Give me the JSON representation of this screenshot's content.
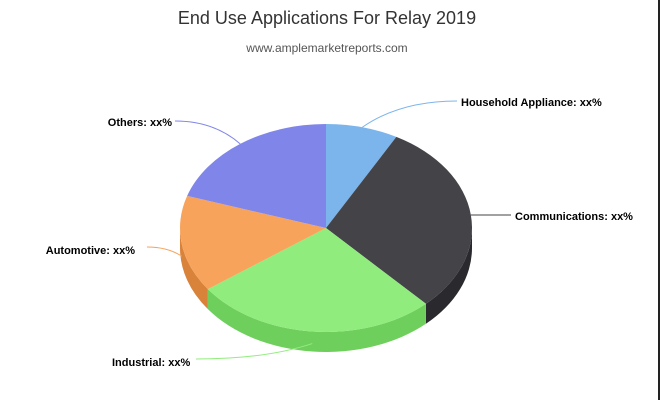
{
  "chart_data": {
    "type": "pie",
    "title": "End Use Applications For Relay 2019",
    "subtitle": "www.amplemarketreports.com",
    "three_d": true,
    "slices": [
      {
        "name": "Household Appliance",
        "label": "Household Appliance: xx%",
        "value": 8,
        "color": "#7cb5ec",
        "side_color": "#5f8fbd"
      },
      {
        "name": "Communications",
        "label": "Communications: xx%",
        "value": 30,
        "color": "#434348",
        "side_color": "#2a2a2e"
      },
      {
        "name": "Industrial",
        "label": "Industrial: xx%",
        "value": 27,
        "color": "#90ed7d",
        "side_color": "#6fcf5c"
      },
      {
        "name": "Automotive",
        "label": "Automotive: xx%",
        "value": 15,
        "color": "#f7a35c",
        "side_color": "#d9823a"
      },
      {
        "name": "Others",
        "label": "Others: xx%",
        "value": 20,
        "color": "#8085e9",
        "side_color": "#5e63c4"
      }
    ]
  }
}
